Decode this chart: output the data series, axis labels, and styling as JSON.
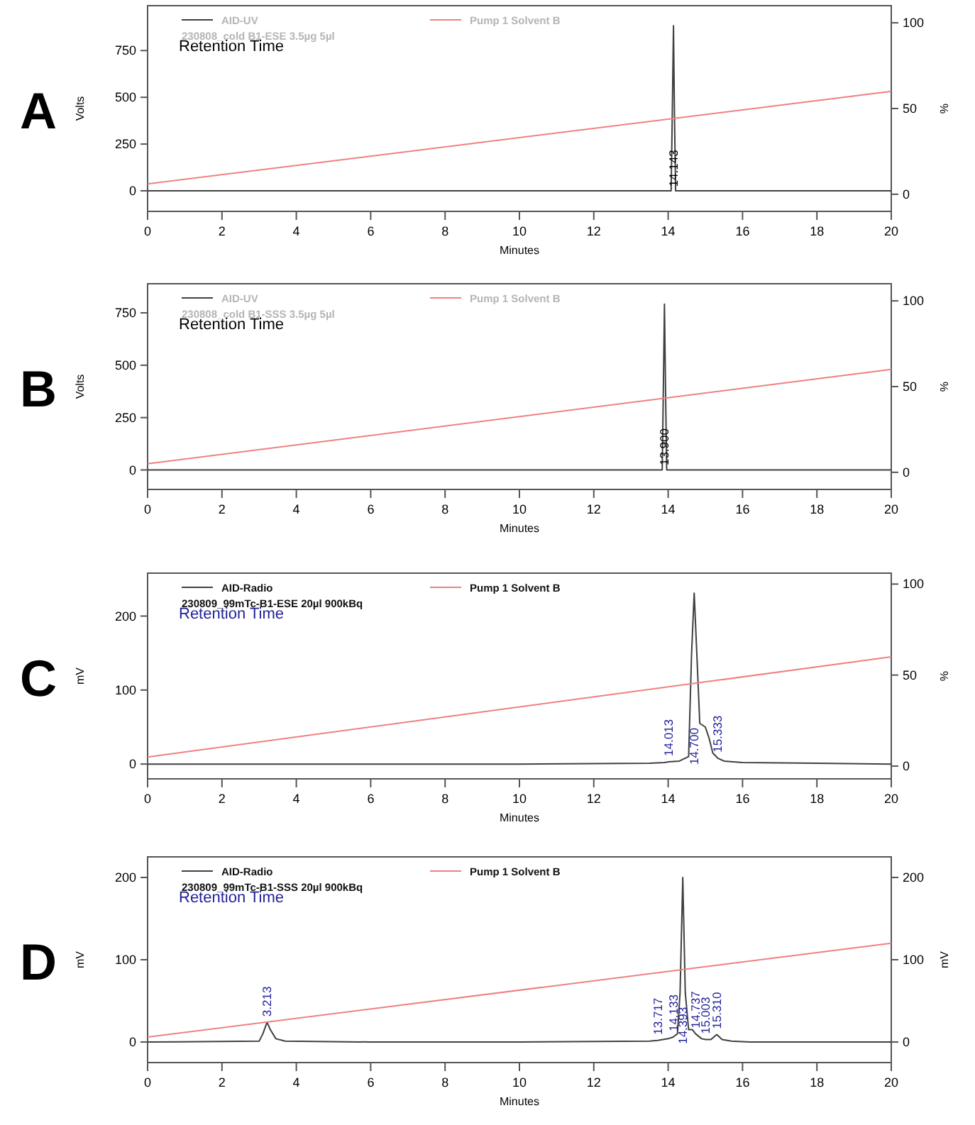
{
  "chart_data": [
    {
      "type": "line",
      "title": "A",
      "xlabel": "Minutes",
      "ylabel": "Volts",
      "y2label": "%",
      "xlim": [
        0,
        20
      ],
      "xticks": [
        0,
        2,
        4,
        6,
        8,
        10,
        12,
        14,
        16,
        18,
        20
      ],
      "ylim": [
        -110,
        990
      ],
      "yticks": [
        0,
        250,
        500,
        750
      ],
      "y2lim": [
        -10,
        110
      ],
      "y2ticks": [
        0,
        50,
        100
      ],
      "legend": "top",
      "line_style": "solid",
      "series": [
        {
          "name": "AID-UV\n230808_cold B1-ESE 3.5µg 5µl",
          "color": "#404040",
          "x": [
            0,
            2,
            4,
            6,
            8,
            10,
            12,
            14,
            14.08,
            14.11,
            14.143,
            14.17,
            14.2,
            14.4,
            16,
            18,
            20
          ],
          "values": [
            0,
            0,
            0,
            0,
            0,
            0,
            0,
            0,
            0,
            400,
            883,
            400,
            0,
            0,
            0,
            0,
            0
          ]
        },
        {
          "name": "Pump 1 Solvent B",
          "color": "#f08080",
          "axis": "y2",
          "x": [
            0,
            20
          ],
          "values": [
            6,
            60
          ]
        }
      ],
      "annotations": [
        "Retention Time",
        {
          "text": "14.143",
          "x": 14.143,
          "y": 120
        }
      ]
    },
    {
      "type": "line",
      "title": "B",
      "xlabel": "Minutes",
      "ylabel": "Volts",
      "y2label": "%",
      "xlim": [
        0,
        20
      ],
      "xticks": [
        0,
        2,
        4,
        6,
        8,
        10,
        12,
        14,
        16,
        18,
        20
      ],
      "ylim": [
        -93,
        889
      ],
      "yticks": [
        0,
        250,
        500,
        750
      ],
      "y2lim": [
        -10,
        110
      ],
      "y2ticks": [
        0,
        50,
        100
      ],
      "legend": "top",
      "line_style": "solid",
      "series": [
        {
          "name": "AID-UV\n230808_cold B1-SSS 3.5µg 5µl",
          "color": "#404040",
          "x": [
            0,
            2,
            4,
            6,
            8,
            10,
            12,
            13.7,
            13.84,
            13.87,
            13.9,
            13.93,
            13.96,
            14.1,
            16,
            18,
            20
          ],
          "values": [
            0,
            0,
            0,
            0,
            0,
            0,
            0,
            0,
            0,
            380,
            792,
            380,
            0,
            0,
            0,
            0,
            0
          ]
        },
        {
          "name": "Pump 1 Solvent B",
          "color": "#f08080",
          "axis": "y2",
          "x": [
            0,
            20
          ],
          "values": [
            5,
            60
          ]
        }
      ],
      "annotations": [
        "Retention Time",
        {
          "text": "13.900",
          "x": 13.9,
          "y": 110
        }
      ]
    },
    {
      "type": "line",
      "title": "C",
      "xlabel": "Minutes",
      "ylabel": "mV",
      "y2label": "%",
      "xlim": [
        0,
        20
      ],
      "xticks": [
        0,
        2,
        4,
        6,
        8,
        10,
        12,
        14,
        16,
        18,
        20
      ],
      "ylim": [
        -20,
        258
      ],
      "yticks": [
        0,
        100,
        200
      ],
      "y2lim": [
        -7,
        106
      ],
      "y2ticks": [
        0,
        50,
        100
      ],
      "legend": "top",
      "line_style": "solid",
      "series": [
        {
          "name": "AID-Radio\n230809_99mTc-B1-ESE 20µl 900kBq",
          "color": "#404040",
          "x": [
            0,
            5,
            10,
            13.5,
            13.9,
            14.013,
            14.3,
            14.55,
            14.63,
            14.7,
            14.77,
            14.85,
            15.0,
            15.1,
            15.2,
            15.333,
            15.5,
            16,
            18,
            20
          ],
          "values": [
            0,
            0,
            0,
            1,
            2,
            3,
            4,
            10,
            150,
            231,
            150,
            55,
            50,
            35,
            15,
            8,
            4,
            2,
            1,
            0
          ]
        },
        {
          "name": "Pump 1 Solvent B",
          "color": "#f08080",
          "axis": "y2",
          "x": [
            0,
            20
          ],
          "values": [
            5,
            60
          ]
        }
      ],
      "annotations": [
        "Retention Time",
        {
          "text": "14.013",
          "x": 14.013,
          "y": 3
        },
        {
          "text": "14.700",
          "x": 14.7,
          "y": 24
        },
        {
          "text": "15.333",
          "x": 15.333,
          "y": 8
        }
      ]
    },
    {
      "type": "line",
      "title": "D",
      "xlabel": "Minutes",
      "ylabel": "mV",
      "y2label": "mV",
      "xlim": [
        0,
        20
      ],
      "xticks": [
        0,
        2,
        4,
        6,
        8,
        10,
        12,
        14,
        16,
        18,
        20
      ],
      "ylim": [
        -25,
        225
      ],
      "yticks": [
        0,
        100,
        200
      ],
      "y2lim": [
        -25,
        225
      ],
      "y2ticks": [
        0,
        100,
        200
      ],
      "legend": "top",
      "line_style": "solid",
      "series": [
        {
          "name": "AID-Radio\n230809_99mTc-B1-SSS 20µl 900kBq",
          "color": "#404040",
          "x": [
            0,
            3.0,
            3.1,
            3.213,
            3.3,
            3.45,
            3.7,
            6,
            10,
            13.5,
            13.717,
            14.0,
            14.133,
            14.25,
            14.32,
            14.393,
            14.46,
            14.55,
            14.65,
            14.737,
            14.9,
            15.003,
            15.15,
            15.25,
            15.31,
            15.45,
            15.7,
            16.2,
            20
          ],
          "values": [
            0,
            1,
            10,
            24,
            15,
            4,
            1,
            0,
            0,
            1,
            2,
            4,
            6,
            10,
            60,
            200,
            60,
            15,
            15,
            10,
            4,
            3,
            3,
            7,
            9,
            3,
            1,
            0,
            0
          ]
        },
        {
          "name": "Pump 1 Solvent B",
          "color": "#f08080",
          "axis": "y2",
          "x": [
            0,
            20
          ],
          "values": [
            6,
            120
          ]
        }
      ],
      "annotations": [
        "Retention Time",
        {
          "text": "3.213",
          "x": 3.213,
          "y": 24
        },
        {
          "text": "13.717",
          "x": 13.717,
          "y": 2
        },
        {
          "text": "14.133",
          "x": 14.133,
          "y": 6
        },
        {
          "text": "14.393",
          "x": 14.393,
          "y": 20
        },
        {
          "text": "14.737",
          "x": 14.737,
          "y": 10
        },
        {
          "text": "15.003",
          "x": 15.003,
          "y": 3
        },
        {
          "text": "15.310",
          "x": 15.31,
          "y": 9
        }
      ]
    }
  ]
}
